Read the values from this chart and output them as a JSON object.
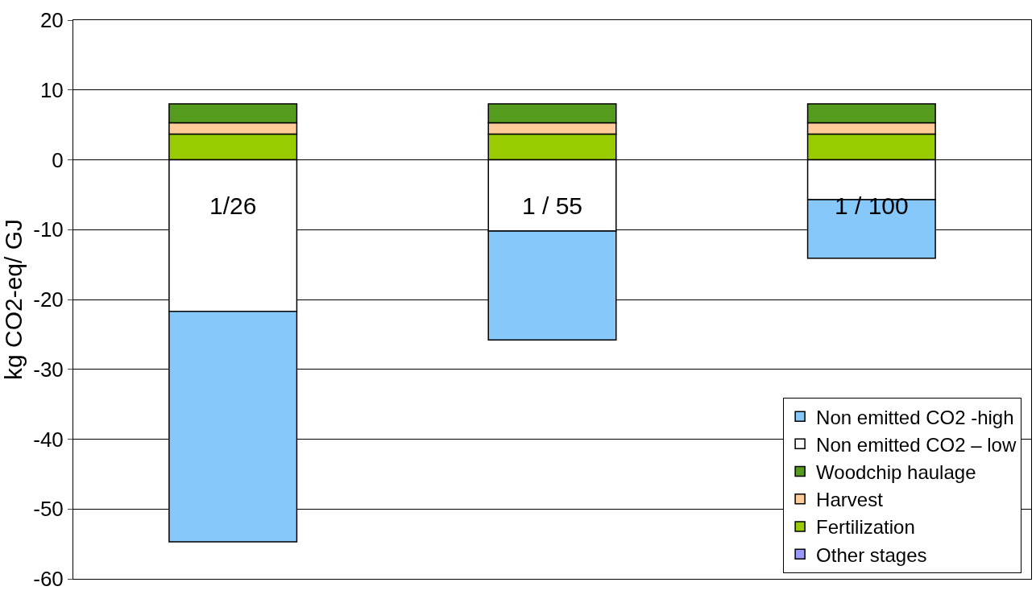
{
  "chart_data": {
    "type": "bar",
    "stacked": true,
    "ylabel": "kg CO2-eq/ GJ",
    "categories": [
      null,
      null,
      null
    ],
    "series": [
      {
        "name": "Other stages",
        "color": "#9999ff",
        "values": [
          null,
          null,
          null
        ]
      },
      {
        "name": "Fertilization",
        "color": "#99cc00",
        "values": [
          3.7,
          3.7,
          3.7
        ]
      },
      {
        "name": "Harvest",
        "color": "#ffcc99",
        "values": [
          1.6,
          1.6,
          1.6
        ]
      },
      {
        "name": "Woodchip haulage",
        "color": "#559c1e",
        "values": [
          2.7,
          2.7,
          2.7
        ]
      },
      {
        "name": "Non emitted CO2 – low",
        "color": "#ffffff",
        "values": [
          -21.7,
          -10.2,
          -5.7
        ]
      },
      {
        "name": "Non emitted CO2 -high",
        "color": "#87c8fa",
        "values": [
          -33.0,
          -15.6,
          -8.4
        ]
      }
    ],
    "annotations": [
      "1/26",
      "1 / 55",
      "1 / 100"
    ],
    "ylim": [
      -60,
      20
    ],
    "yticks": [
      -60,
      -50,
      -40,
      -30,
      -20,
      -10,
      0,
      10,
      20
    ],
    "grid": "y",
    "legend": "bottom right"
  }
}
